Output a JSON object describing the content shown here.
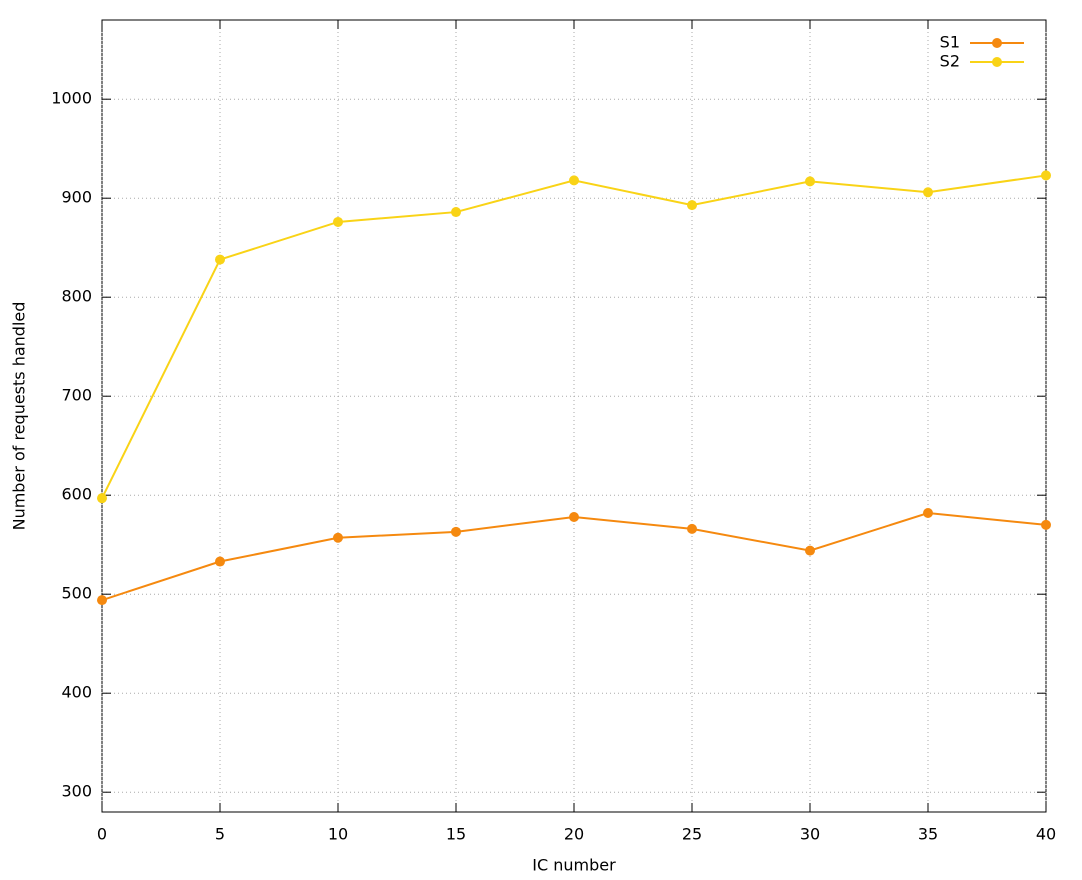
{
  "chart_data": {
    "type": "line",
    "x_label": "IC number",
    "y_label": "Number of requests handled",
    "x": [
      0,
      5,
      10,
      15,
      20,
      25,
      30,
      35,
      40
    ],
    "series": [
      {
        "name": "S1",
        "color": "#f5890f",
        "values": [
          494,
          533,
          557,
          563,
          578,
          566,
          544,
          582,
          570
        ]
      },
      {
        "name": "S2",
        "color": "#f9d316",
        "values": [
          597,
          838,
          876,
          886,
          918,
          893,
          917,
          906,
          923
        ]
      }
    ],
    "xlim": [
      0,
      40
    ],
    "xticks": [
      0,
      5,
      10,
      15,
      20,
      25,
      30,
      35,
      40
    ],
    "ylim": [
      280,
      1080
    ],
    "yticks": [
      300,
      400,
      500,
      600,
      700,
      800,
      900,
      1000
    ],
    "grid": true,
    "legend": "top-right"
  }
}
